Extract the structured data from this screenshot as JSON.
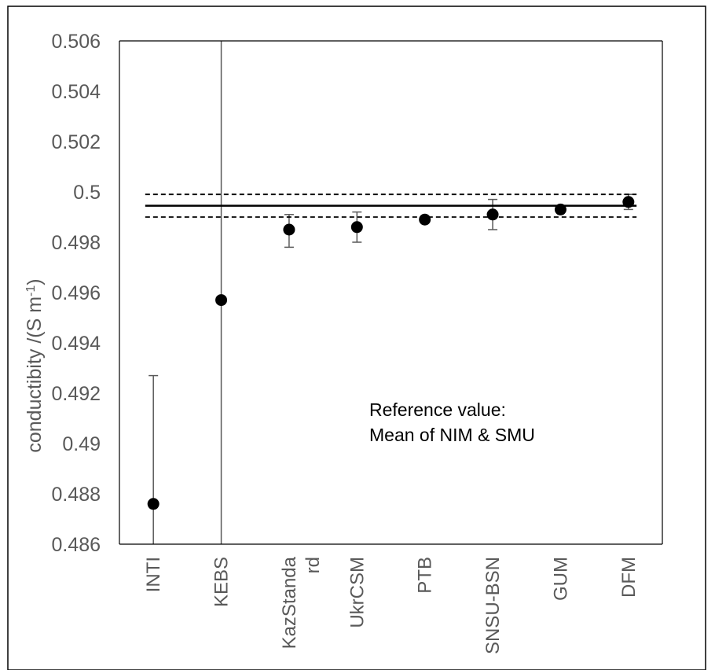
{
  "chart_data": {
    "type": "scatter",
    "categories": [
      "INTI",
      "KEBS",
      "KazStanda rd",
      "UkrCSM",
      "PTB",
      "SNSU-BSN",
      "GUM",
      "DFM"
    ],
    "series": [
      {
        "values": [
          0.4876,
          0.4957,
          0.4985,
          0.4986,
          0.4989,
          0.4991,
          0.4993,
          0.4996
        ],
        "error_low": [
          0.486,
          0.486,
          0.4978,
          0.498,
          0.4989,
          0.4985,
          0.4993,
          0.4993
        ],
        "error_high": [
          0.4927,
          0.506,
          0.4991,
          0.4992,
          0.4989,
          0.4997,
          0.4993,
          0.4999
        ]
      }
    ],
    "reference_value": 0.49945,
    "reference_band": [
      0.499,
      0.4999
    ],
    "ylim": [
      0.486,
      0.506
    ],
    "yticks": [
      "0.486",
      "0.488",
      "0.49",
      "0.492",
      "0.494",
      "0.496",
      "0.498",
      "0.5",
      "0.502",
      "0.504",
      "0.506"
    ],
    "ylabel_main": "conductibity  /(S m",
    "ylabel_sup": "-1",
    "ylabel_end": ")",
    "annotation_lines": [
      "Reference value:",
      "Mean of NIM & SMU"
    ],
    "grid": false,
    "colors": {
      "marker": "#000000",
      "errorbar": "#595959",
      "axis": "#000000",
      "text": "#595959"
    }
  }
}
